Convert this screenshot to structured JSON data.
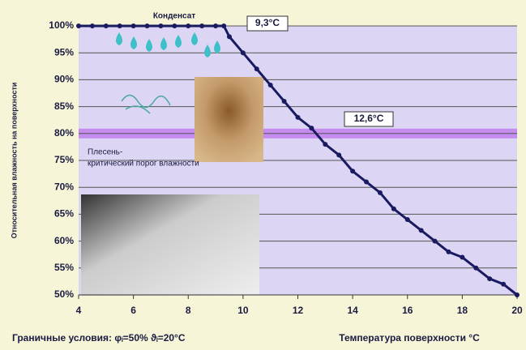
{
  "chart_data": {
    "type": "line",
    "y_label": "Относительная влажность на поверхности",
    "x_label": "Температура поверхности °C",
    "footer": "Граничные условия: φᵢ=50%  ϑᵢ=20°C",
    "annotations": [
      "Конденсат",
      "9,3°C",
      "12,6°C",
      "Плесень-",
      "критический порог влажности"
    ],
    "threshold": 80,
    "threshold_color": "#c58cf0",
    "x": [
      4,
      4.5,
      5,
      5.5,
      6,
      6.5,
      7,
      7.5,
      8,
      8.5,
      9,
      9.3,
      9.5,
      10,
      10.5,
      11,
      11.5,
      12,
      12.5,
      13,
      13.5,
      14,
      14.5,
      15,
      15.5,
      16,
      16.5,
      17,
      17.5,
      18,
      18.5,
      19,
      19.5,
      20
    ],
    "series": [
      {
        "color": "#1a1a60",
        "values": [
          100,
          100,
          100,
          100,
          100,
          100,
          100,
          100,
          100,
          100,
          100,
          100,
          98,
          95,
          92,
          89,
          86,
          83,
          81,
          78,
          76,
          73,
          71,
          69,
          66,
          64,
          62,
          60,
          58,
          57,
          55,
          53,
          52,
          50
        ]
      }
    ],
    "xlim": [
      4,
      20
    ],
    "xticks": [
      4,
      6,
      8,
      10,
      12,
      14,
      16,
      18,
      20
    ],
    "ylim": [
      50,
      100
    ],
    "yticks": [
      {
        "value": 50,
        "label": "50%"
      },
      {
        "value": 55,
        "label": "55%"
      },
      {
        "value": 60,
        "label": "60%"
      },
      {
        "value": 65,
        "label": "65%"
      },
      {
        "value": 70,
        "label": "70%"
      },
      {
        "value": 75,
        "label": "75%"
      },
      {
        "value": 80,
        "label": "80%"
      },
      {
        "value": 85,
        "label": "85%"
      },
      {
        "value": 90,
        "label": "90%"
      },
      {
        "value": 95,
        "label": "95%"
      },
      {
        "value": 100,
        "label": "100%"
      }
    ],
    "grid": true
  }
}
